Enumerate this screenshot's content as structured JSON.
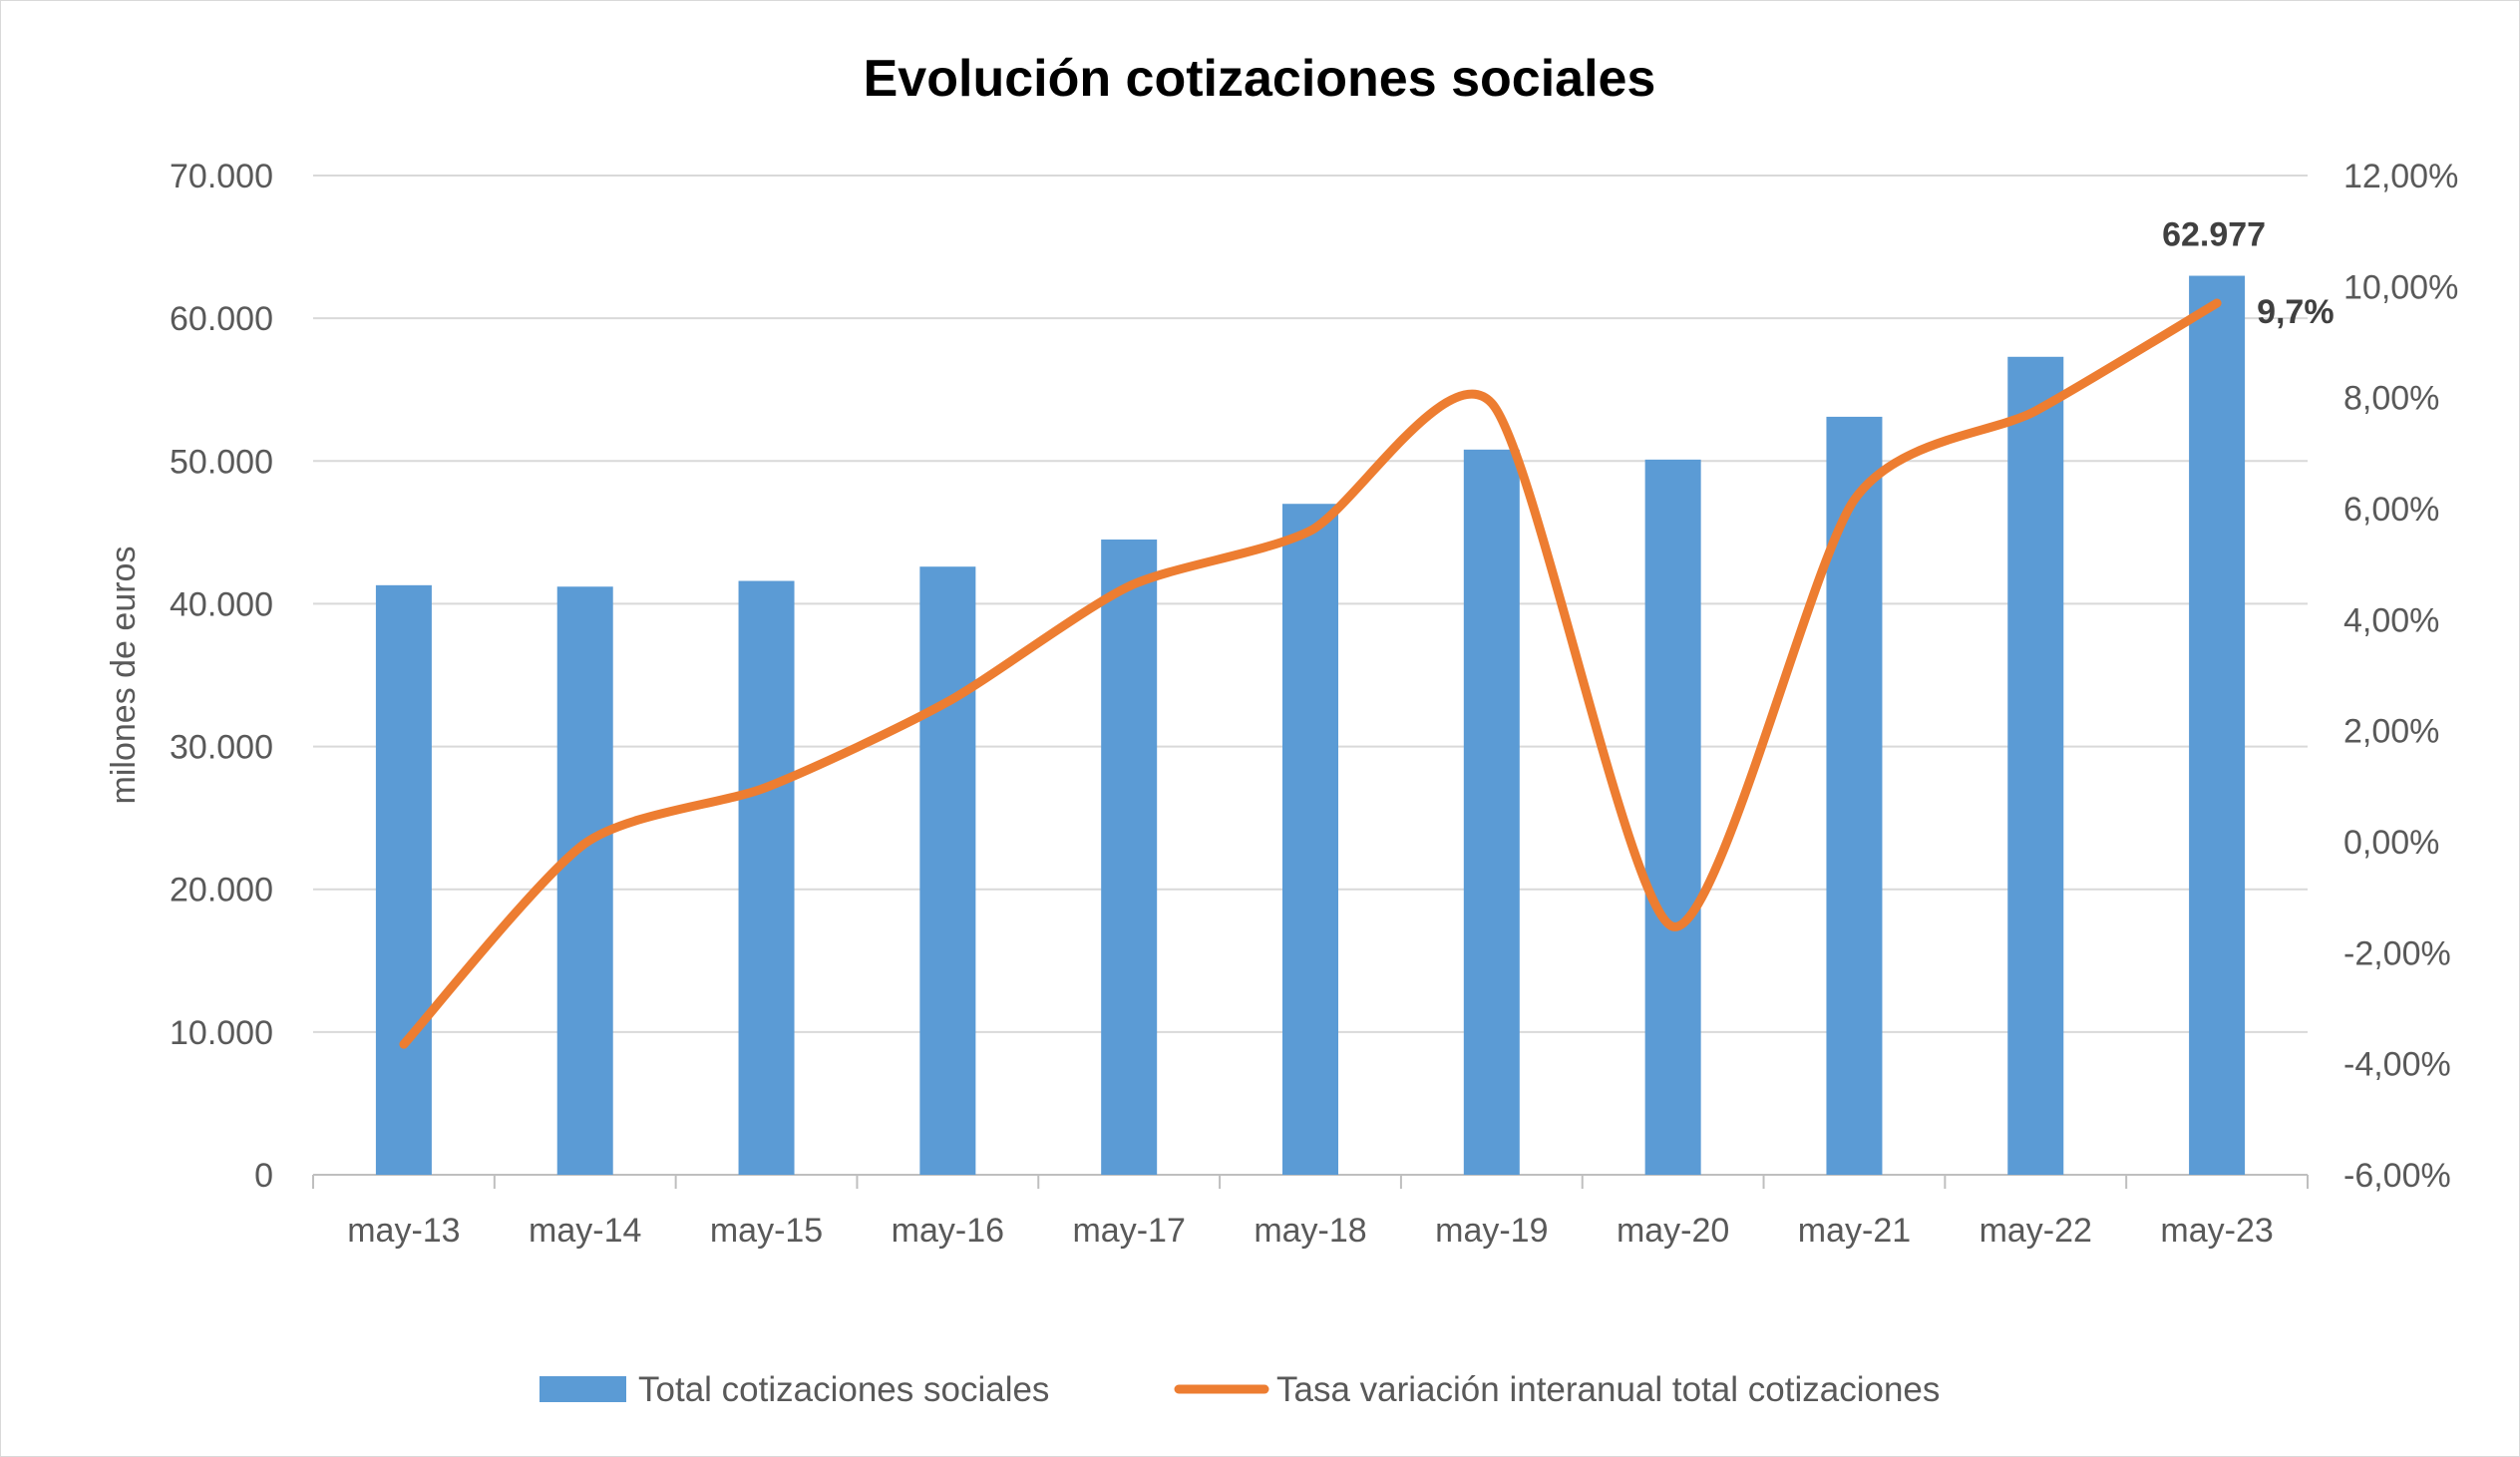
{
  "chart_data": {
    "type": "bar+line",
    "title": "Evolución cotizaciones sociales",
    "ylabel": "milones de euros",
    "y2label": "",
    "xlabel": "",
    "categories": [
      "may-13",
      "may-14",
      "may-15",
      "may-16",
      "may-17",
      "may-18",
      "may-19",
      "may-20",
      "may-21",
      "may-22",
      "may-23"
    ],
    "ylim": [
      0,
      70000
    ],
    "y_ticks": [
      "0",
      "10.000",
      "20.000",
      "30.000",
      "40.000",
      "50.000",
      "60.000",
      "70.000"
    ],
    "y2lim": [
      -6,
      12
    ],
    "y2_ticks": [
      "-6,00%",
      "-4,00%",
      "-2,00%",
      "0,00%",
      "2,00%",
      "4,00%",
      "6,00%",
      "8,00%",
      "10,00%",
      "12,00%"
    ],
    "grid": true,
    "legend_placement": "bottom",
    "series": [
      {
        "name": "Total cotizaciones sociales",
        "type": "bar",
        "axis": "left",
        "color": "#5b9bd5",
        "values": [
          41300,
          41200,
          41600,
          42600,
          44500,
          47000,
          50800,
          50100,
          53100,
          57300,
          62977
        ]
      },
      {
        "name": "Tasa variación interanual total cotizaciones",
        "type": "line",
        "axis": "right",
        "color": "#ed7d31",
        "values": [
          -3.65,
          -0.03,
          0.98,
          2.52,
          4.6,
          5.6,
          7.9,
          -1.53,
          6.16,
          7.76,
          9.7
        ]
      }
    ],
    "data_labels": {
      "bar_last": "62.977",
      "line_last": "9,7%"
    }
  }
}
